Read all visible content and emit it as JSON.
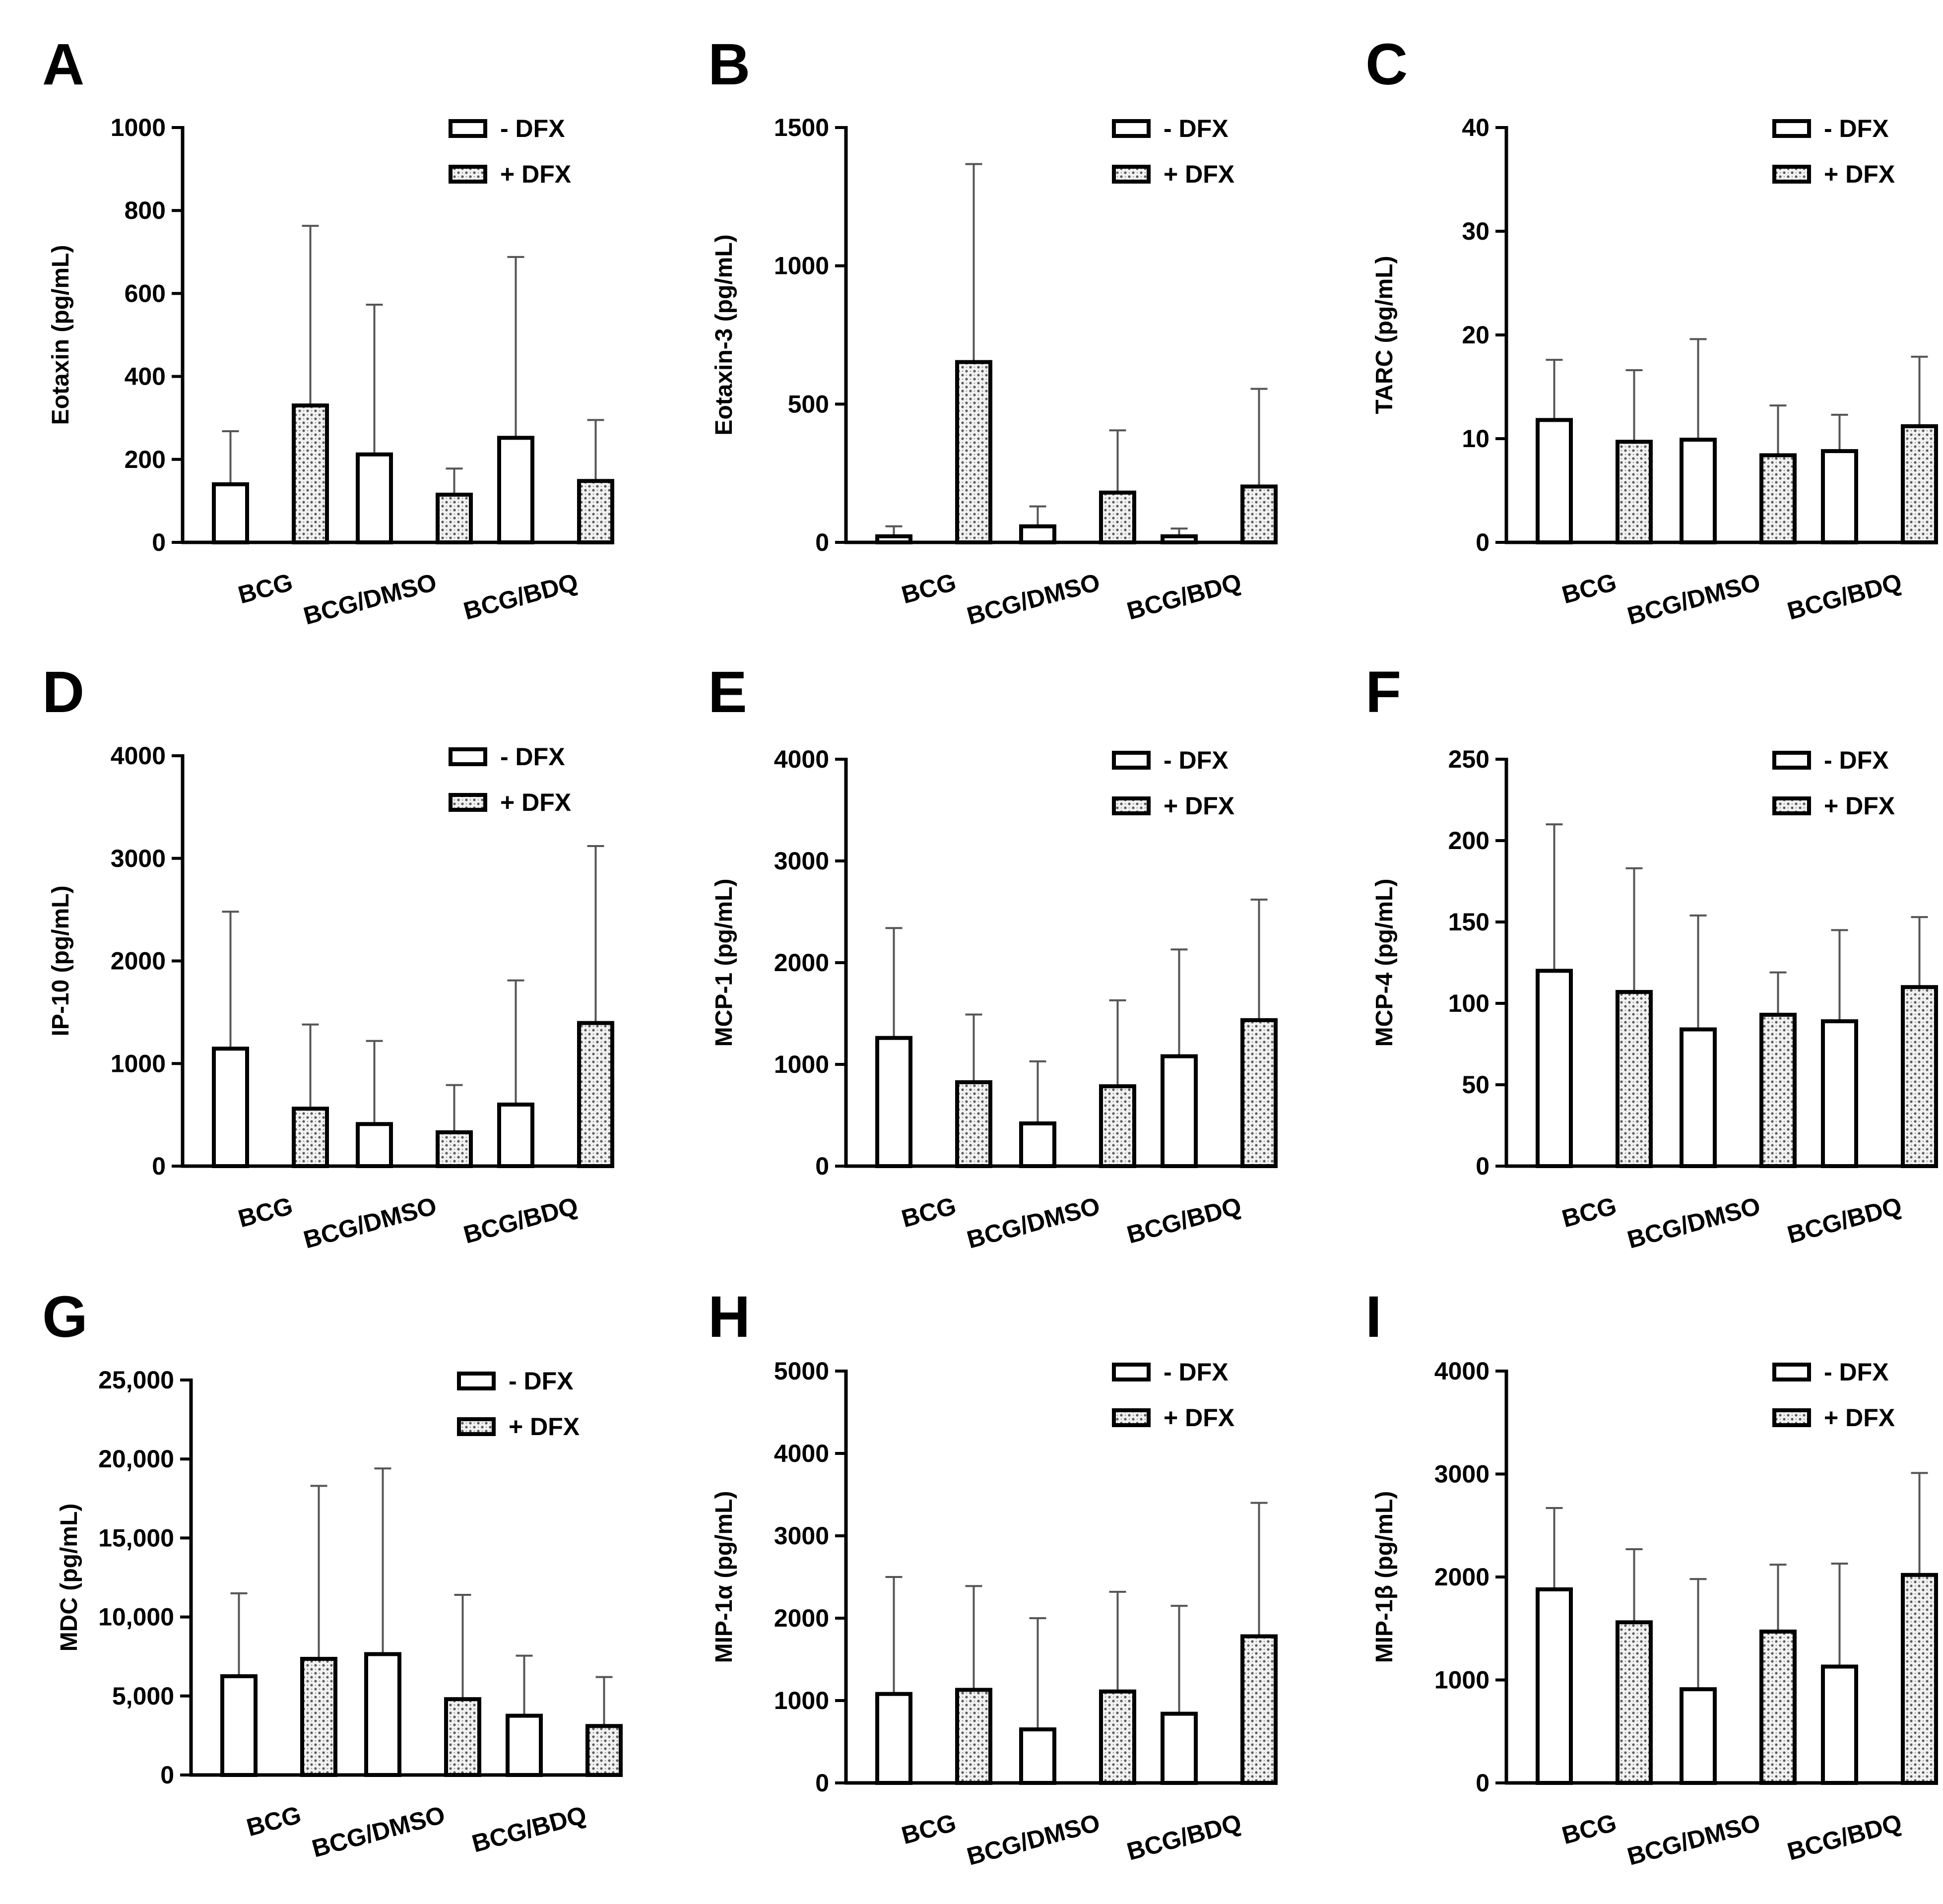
{
  "figure": {
    "legend": {
      "minus": "- DFX",
      "plus": "+ DFX"
    },
    "categories": [
      "BCG",
      "BCG/DMSO",
      "BCG/BDQ"
    ]
  },
  "chart_data": [
    {
      "type": "bar",
      "panel": "A",
      "ylabel": "Eotaxin (pg/mL)",
      "ylim": [
        0,
        1000
      ],
      "yticks": [
        0,
        200,
        400,
        600,
        800,
        1000
      ],
      "ytick_labels": [
        "0",
        "200",
        "400",
        "600",
        "800",
        "1000"
      ],
      "categories": [
        "BCG",
        "BCG/DMSO",
        "BCG/BDQ"
      ],
      "series": [
        {
          "name": "- DFX",
          "values": [
            140,
            212,
            252
          ],
          "errors": [
            268,
            573,
            688
          ]
        },
        {
          "name": "+ DFX",
          "values": [
            330,
            115,
            148
          ],
          "errors": [
            763,
            178,
            295
          ]
        }
      ]
    },
    {
      "type": "bar",
      "panel": "B",
      "ylabel": "Eotaxin-3 (pg/mL)",
      "ylim": [
        0,
        1500
      ],
      "yticks": [
        0,
        500,
        1000,
        1500
      ],
      "ytick_labels": [
        "0",
        "500",
        "1000",
        "1500"
      ],
      "categories": [
        "BCG",
        "BCG/DMSO",
        "BCG/BDQ"
      ],
      "series": [
        {
          "name": "- DFX",
          "values": [
            22,
            58,
            22
          ],
          "errors": [
            58,
            130,
            50
          ]
        },
        {
          "name": "+ DFX",
          "values": [
            652,
            180,
            202
          ],
          "errors": [
            1368,
            405,
            555
          ]
        }
      ]
    },
    {
      "type": "bar",
      "panel": "C",
      "ylabel": "TARC (pg/mL)",
      "ylim": [
        0,
        40
      ],
      "yticks": [
        0,
        10,
        20,
        30,
        40
      ],
      "ytick_labels": [
        "0",
        "10",
        "20",
        "30",
        "40"
      ],
      "categories": [
        "BCG",
        "BCG/DMSO",
        "BCG/BDQ"
      ],
      "series": [
        {
          "name": "- DFX",
          "values": [
            11.8,
            9.9,
            8.8
          ],
          "errors": [
            17.6,
            19.6,
            12.3
          ]
        },
        {
          "name": "+ DFX",
          "values": [
            9.7,
            8.4,
            11.2
          ],
          "errors": [
            16.6,
            13.2,
            17.9
          ]
        }
      ]
    },
    {
      "type": "bar",
      "panel": "D",
      "ylabel": "IP-10 (pg/mL)",
      "ylim": [
        0,
        4000
      ],
      "yticks": [
        0,
        1000,
        2000,
        3000,
        4000
      ],
      "ytick_labels": [
        "0",
        "1000",
        "2000",
        "3000",
        "4000"
      ],
      "categories": [
        "BCG",
        "BCG/DMSO",
        "BCG/BDQ"
      ],
      "series": [
        {
          "name": "- DFX",
          "values": [
            1145,
            410,
            600
          ],
          "errors": [
            2480,
            1220,
            1810
          ]
        },
        {
          "name": "+ DFX",
          "values": [
            560,
            330,
            1395
          ],
          "errors": [
            1380,
            790,
            3120
          ]
        }
      ]
    },
    {
      "type": "bar",
      "panel": "E",
      "ylabel": "MCP-1 (pg/mL)",
      "ylim": [
        0,
        4000
      ],
      "yticks": [
        0,
        1000,
        2000,
        3000,
        4000
      ],
      "ytick_labels": [
        "0",
        "1000",
        "2000",
        "3000",
        "4000"
      ],
      "categories": [
        "BCG",
        "BCG/DMSO",
        "BCG/BDQ"
      ],
      "series": [
        {
          "name": "- DFX",
          "values": [
            1260,
            420,
            1080
          ],
          "errors": [
            2340,
            1030,
            2130
          ]
        },
        {
          "name": "+ DFX",
          "values": [
            825,
            785,
            1435
          ],
          "errors": [
            1490,
            1630,
            2620
          ]
        }
      ]
    },
    {
      "type": "bar",
      "panel": "F",
      "ylabel": "MCP-4 (pg/mL)",
      "ylim": [
        0,
        250
      ],
      "yticks": [
        0,
        50,
        100,
        150,
        200,
        250
      ],
      "ytick_labels": [
        "0",
        "50",
        "100",
        "150",
        "200",
        "250"
      ],
      "categories": [
        "BCG",
        "BCG/DMSO",
        "BCG/BDQ"
      ],
      "series": [
        {
          "name": "- DFX",
          "values": [
            120,
            84,
            89
          ],
          "errors": [
            210,
            154,
            145
          ]
        },
        {
          "name": "+ DFX",
          "values": [
            107,
            93,
            110
          ],
          "errors": [
            183,
            119,
            153
          ]
        }
      ]
    },
    {
      "type": "bar",
      "panel": "G",
      "ylabel": "MDC (pg/mL)",
      "ylim": [
        0,
        25000
      ],
      "yticks": [
        0,
        5000,
        10000,
        15000,
        20000,
        25000
      ],
      "ytick_labels": [
        "0",
        "5,000",
        "10,000",
        "15,000",
        "20,000",
        "25,000"
      ],
      "categories": [
        "BCG",
        "BCG/DMSO",
        "BCG/BDQ"
      ],
      "series": [
        {
          "name": "- DFX",
          "values": [
            6250,
            7650,
            3750
          ],
          "errors": [
            11500,
            19400,
            7550
          ]
        },
        {
          "name": "+ DFX",
          "values": [
            7350,
            4800,
            3100
          ],
          "errors": [
            18300,
            11400,
            6200
          ]
        }
      ]
    },
    {
      "type": "bar",
      "panel": "H",
      "ylabel": "MIP-1α (pg/mL)",
      "ylim": [
        0,
        5000
      ],
      "yticks": [
        0,
        1000,
        2000,
        3000,
        4000,
        5000
      ],
      "ytick_labels": [
        "0",
        "1000",
        "2000",
        "3000",
        "4000",
        "5000"
      ],
      "categories": [
        "BCG",
        "BCG/DMSO",
        "BCG/BDQ"
      ],
      "series": [
        {
          "name": "- DFX",
          "values": [
            1080,
            650,
            840
          ],
          "errors": [
            2500,
            2000,
            2150
          ]
        },
        {
          "name": "+ DFX",
          "values": [
            1130,
            1110,
            1780
          ],
          "errors": [
            2390,
            2320,
            3400
          ]
        }
      ]
    },
    {
      "type": "bar",
      "panel": "I",
      "ylabel": "MIP-1β (pg/mL)",
      "ylim": [
        0,
        4000
      ],
      "yticks": [
        0,
        1000,
        2000,
        3000,
        4000
      ],
      "ytick_labels": [
        "0",
        "1000",
        "2000",
        "3000",
        "4000"
      ],
      "categories": [
        "BCG",
        "BCG/DMSO",
        "BCG/BDQ"
      ],
      "series": [
        {
          "name": "- DFX",
          "values": [
            1880,
            910,
            1130
          ],
          "errors": [
            2670,
            1980,
            2130
          ]
        },
        {
          "name": "+ DFX",
          "values": [
            1560,
            1470,
            2020
          ],
          "errors": [
            2270,
            2120,
            3010
          ]
        }
      ]
    }
  ]
}
